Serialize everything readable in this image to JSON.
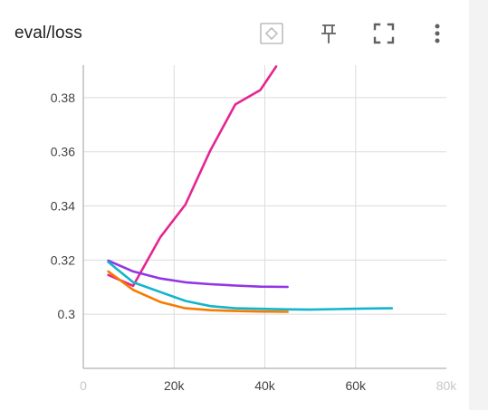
{
  "card": {
    "title": "eval/loss"
  },
  "toolbar": {
    "fit_icon": "fit-domain-icon",
    "pin_icon": "pin-icon",
    "fullscreen_icon": "fullscreen-icon",
    "more_icon": "more-vert-icon"
  },
  "colors": {
    "grid": "#dcdcdc",
    "axis": "#9e9e9e",
    "icon": "#616161",
    "icon_disabled": "#bdbdbd"
  },
  "chart_data": {
    "type": "line",
    "title": "eval/loss",
    "xlabel": "",
    "ylabel": "",
    "xlim": [
      0,
      80000
    ],
    "ylim": [
      0.28,
      0.392
    ],
    "x_ticks": [
      0,
      20000,
      40000,
      60000,
      80000
    ],
    "x_tick_labels": [
      "0",
      "20k",
      "40k",
      "60k",
      "80k"
    ],
    "y_ticks": [
      0.3,
      0.32,
      0.34,
      0.36,
      0.38
    ],
    "y_tick_labels": [
      "0.3",
      "0.32",
      "0.34",
      "0.36",
      "0.38"
    ],
    "grid": true,
    "series": [
      {
        "color": "#e52592",
        "x": [
          5500,
          11000,
          17000,
          22500,
          28000,
          33500,
          39000,
          42500
        ],
        "y": [
          0.3145,
          0.3105,
          0.3285,
          0.3405,
          0.3605,
          0.3775,
          0.3828,
          0.3915
        ]
      },
      {
        "color": "#9334e6",
        "x": [
          5500,
          11000,
          17000,
          22500,
          28000,
          33500,
          39000,
          45000
        ],
        "y": [
          0.3198,
          0.3158,
          0.3132,
          0.3118,
          0.3111,
          0.3106,
          0.3102,
          0.3101
        ]
      },
      {
        "color": "#12b5cb",
        "x": [
          5500,
          11000,
          17000,
          22500,
          28000,
          33500,
          39000,
          45000,
          50000,
          56000,
          62000,
          68000
        ],
        "y": [
          0.3193,
          0.3118,
          0.3082,
          0.3049,
          0.303,
          0.3022,
          0.302,
          0.3018,
          0.3017,
          0.3019,
          0.3021,
          0.3022
        ]
      },
      {
        "color": "#f57c00",
        "x": [
          5500,
          11000,
          17000,
          22500,
          28000,
          33500,
          39000,
          45000
        ],
        "y": [
          0.3158,
          0.309,
          0.3045,
          0.3022,
          0.3015,
          0.3012,
          0.301,
          0.3009
        ]
      }
    ]
  }
}
